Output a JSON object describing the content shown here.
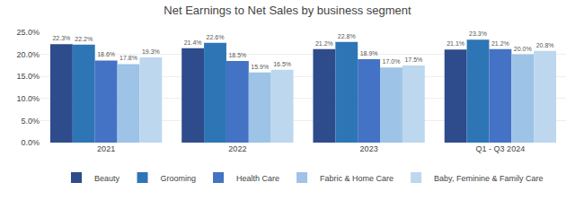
{
  "chart_data": {
    "type": "bar",
    "title": "Net Earnings to Net Sales by business segment",
    "categories": [
      "2021",
      "2022",
      "2023",
      "Q1 - Q3 2024"
    ],
    "series": [
      {
        "name": "Beauty",
        "color": "#2E4B8B",
        "values": [
          22.3,
          21.4,
          21.2,
          21.1
        ],
        "value_labels": [
          "22.3%",
          "21.4%",
          "21.2%",
          "21.1%"
        ]
      },
      {
        "name": "Grooming",
        "color": "#2E75B6",
        "values": [
          22.2,
          22.6,
          22.8,
          23.3
        ],
        "value_labels": [
          "22.2%",
          "22.6%",
          "22.8%",
          "23.3%"
        ]
      },
      {
        "name": "Health Care",
        "color": "#4472C4",
        "values": [
          18.6,
          18.5,
          18.9,
          21.2
        ],
        "value_labels": [
          "18.6%",
          "18.5%",
          "18.9%",
          "21.2%"
        ]
      },
      {
        "name": "Fabric & Home Care",
        "color": "#9DC3E6",
        "values": [
          17.8,
          15.9,
          17.0,
          20.0
        ],
        "value_labels": [
          "17.8%",
          "15.9%",
          "17.0%",
          "20.0%"
        ]
      },
      {
        "name": "Baby, Feminine & Family Care",
        "color": "#BDD7EE",
        "values": [
          19.3,
          16.5,
          17.5,
          20.8
        ],
        "value_labels": [
          "19.3%",
          "16.5%",
          "17.5%",
          "20.8%"
        ]
      }
    ],
    "ylim": [
      0,
      25.0
    ],
    "yticks": [
      {
        "value": 0.0,
        "label": "0.0%"
      },
      {
        "value": 5.0,
        "label": "5.0%"
      },
      {
        "value": 10.0,
        "label": "10.0%"
      },
      {
        "value": 15.0,
        "label": "15.0%"
      },
      {
        "value": 20.0,
        "label": "20.0%"
      },
      {
        "value": 25.0,
        "label": "25.0%"
      }
    ],
    "grid": true,
    "legend": "bottom",
    "data_labels": true
  }
}
